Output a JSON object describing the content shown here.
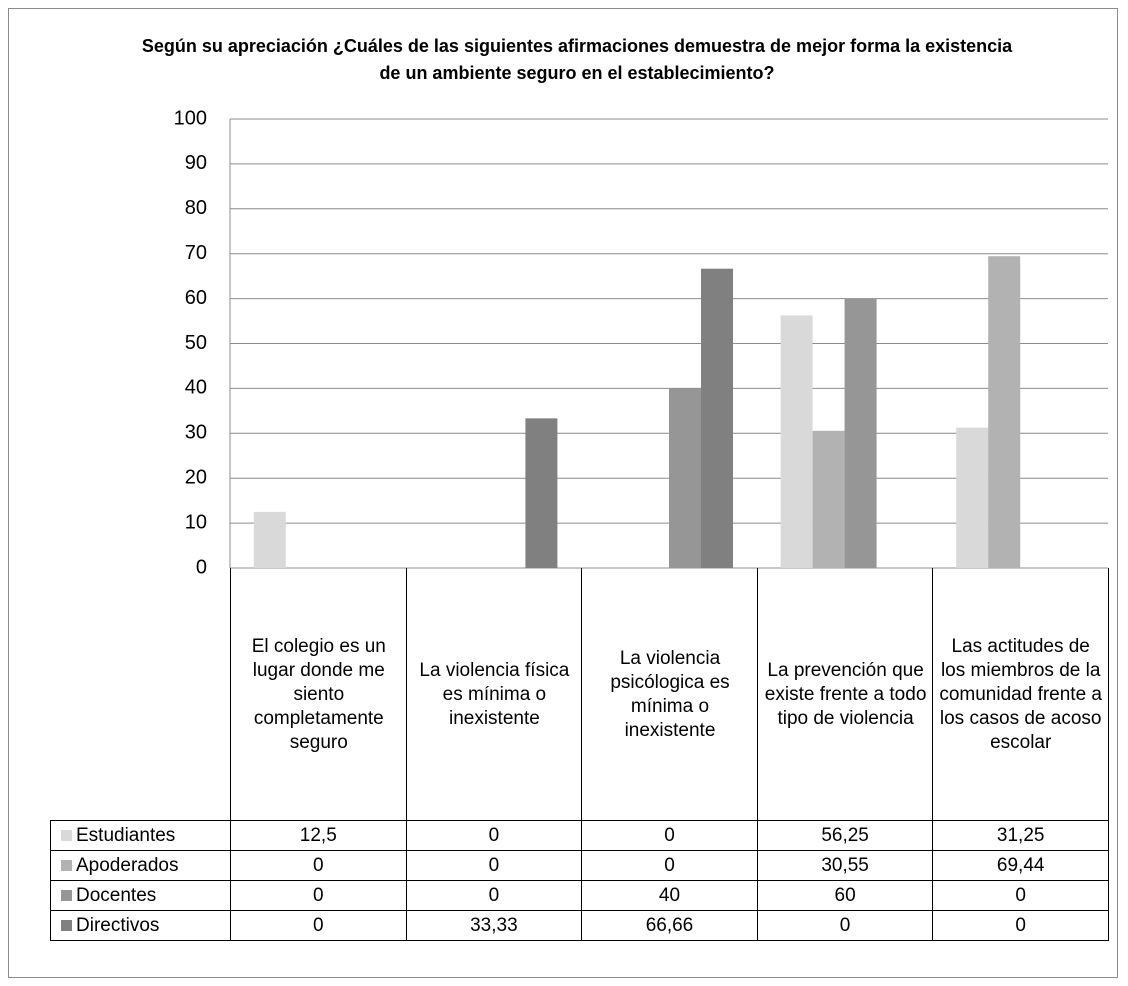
{
  "chart_data": {
    "type": "bar",
    "title": "Según su apreciación ¿Cuáles de las siguientes afirmaciones demuestra de mejor forma la existencia de un ambiente seguro en el establecimiento?",
    "categories": [
      "El colegio es un lugar donde me siento completamente seguro",
      "La violencia física es mínima o inexistente",
      "La violencia psicólogica es mínima o inexistente",
      "La prevención que existe frente a todo tipo de violencia",
      "Las actitudes de los miembros de la comunidad frente a los casos de acoso escolar"
    ],
    "series": [
      {
        "name": "Estudiantes",
        "color": "#d9d9d9",
        "values": [
          12.5,
          0,
          0,
          56.25,
          31.25
        ],
        "value_labels": [
          "12,5",
          "0",
          "0",
          "56,25",
          "31,25"
        ]
      },
      {
        "name": "Apoderados",
        "color": "#b2b2b2",
        "values": [
          0,
          0,
          0,
          30.55,
          69.44
        ],
        "value_labels": [
          "0",
          "0",
          "0",
          "30,55",
          "69,44"
        ]
      },
      {
        "name": "Docentes",
        "color": "#969696",
        "values": [
          0,
          0,
          40,
          60,
          0
        ],
        "value_labels": [
          "0",
          "0",
          "40",
          "60",
          "0"
        ]
      },
      {
        "name": "Directivos",
        "color": "#808080",
        "values": [
          0,
          33.33,
          66.66,
          0,
          0
        ],
        "value_labels": [
          "0",
          "33,33",
          "66,66",
          "0",
          "0"
        ]
      }
    ],
    "ylim": [
      0,
      100
    ],
    "yticks": [
      0,
      10,
      20,
      30,
      40,
      50,
      60,
      70,
      80,
      90,
      100
    ],
    "grid": true
  }
}
